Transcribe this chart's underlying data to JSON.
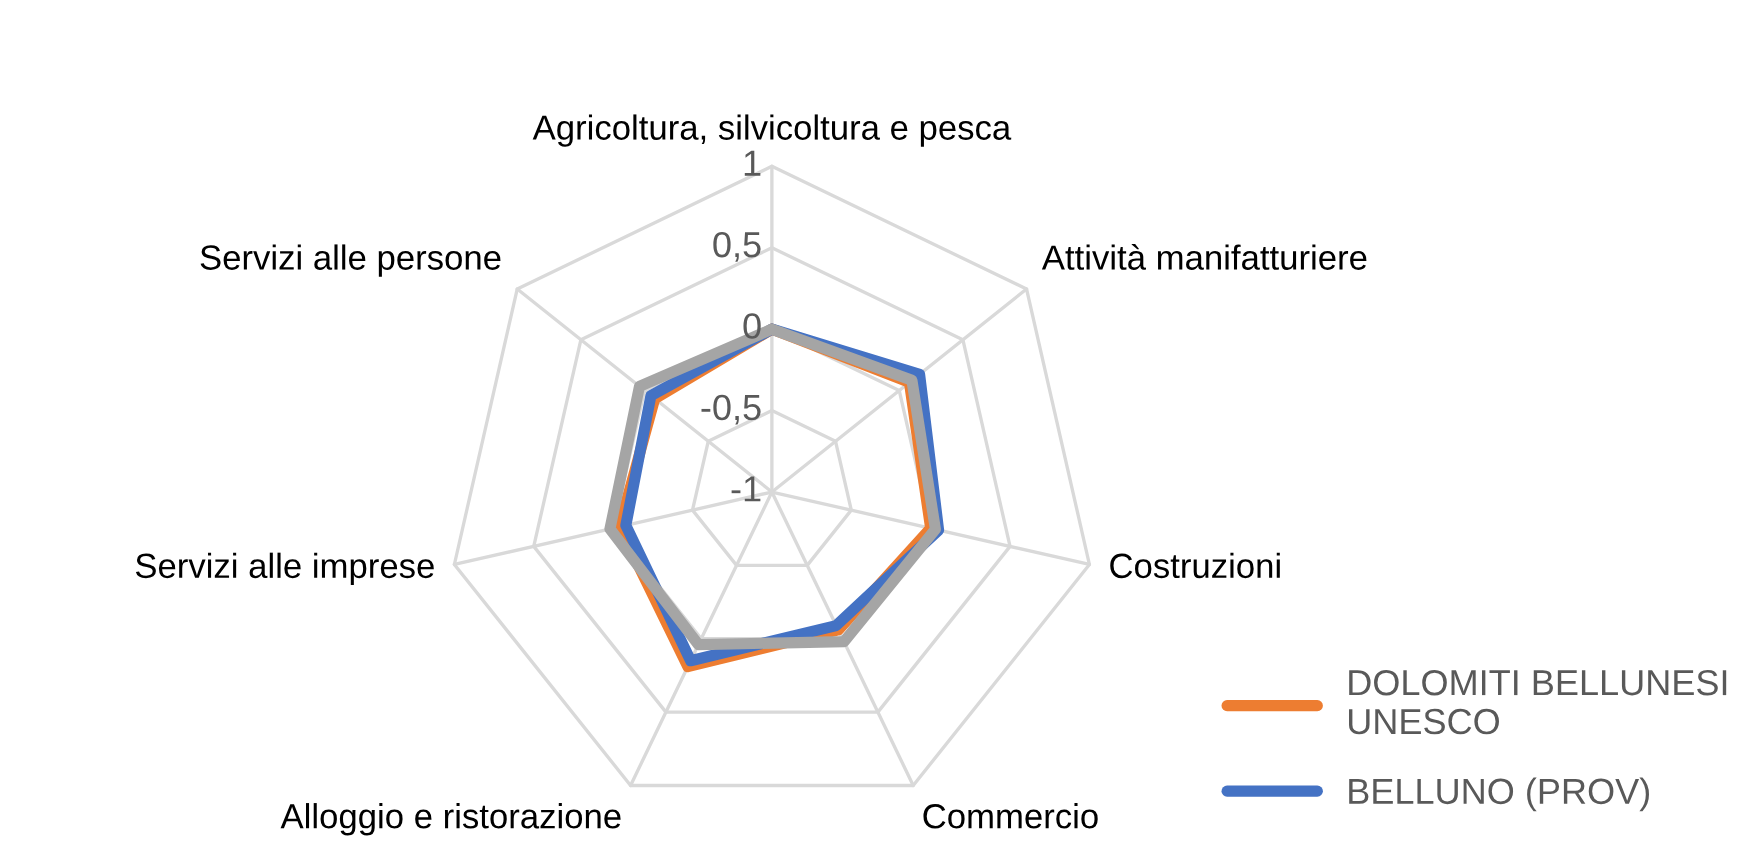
{
  "chart_data": {
    "type": "radar",
    "categories": [
      "Agricoltura, silvicoltura e pesca",
      "Attività manifatturiere",
      "Costruzioni",
      "Commercio",
      "Alloggio e ristorazione",
      "Servizi alle imprese",
      "Servizi alle persone"
    ],
    "ylim": [
      -1,
      1
    ],
    "yticks": [
      {
        "value": -1,
        "label": "-1"
      },
      {
        "value": -0.5,
        "label": "-0,5"
      },
      {
        "value": 0,
        "label": "0"
      },
      {
        "value": 0.5,
        "label": "0,5"
      },
      {
        "value": 1,
        "label": "1"
      }
    ],
    "grid": true,
    "legend": "bottom right",
    "series": [
      {
        "name": "DOLOMITI BELLUNESI UNESCO",
        "color": "#ed7d31",
        "values": [
          0,
          0.08,
          0.0,
          -0.06,
          0.19,
          -0.04,
          -0.08
        ]
      },
      {
        "name": "BELLUNO (PROV)",
        "color": "#4472c4",
        "values": [
          0,
          0.16,
          0.05,
          -0.09,
          0.15,
          -0.08,
          -0.05
        ]
      },
      {
        "color": "#a5a5a5",
        "values": [
          0,
          0.1,
          0.03,
          0.02,
          0.04,
          0.02,
          0.04
        ]
      }
    ]
  }
}
